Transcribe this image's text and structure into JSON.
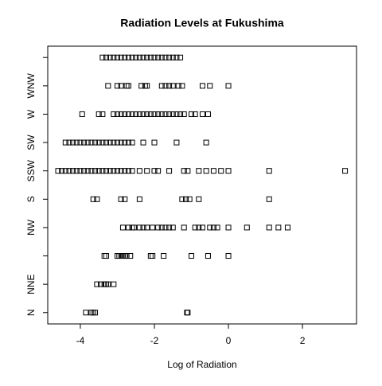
{
  "chart_data": {
    "type": "strip",
    "title": "Radiation Levels at Fukushima",
    "xlabel": "Log of Radiation",
    "categories": [
      "N",
      "NNE",
      null,
      "NW",
      "S",
      "SSW",
      "SW",
      "W",
      "WNW",
      null
    ],
    "values": [
      [
        -3.85,
        -3.7,
        -3.65,
        -3.6,
        -1.12,
        -1.1
      ],
      [
        -3.55,
        -3.45,
        -3.35,
        -3.3,
        -3.25,
        -3.1
      ],
      [
        -3.35,
        -3.3,
        -3.0,
        -2.95,
        -2.9,
        -2.85,
        -2.8,
        -2.75,
        -2.65,
        -2.1,
        -2.05,
        -1.75,
        -1.0,
        -0.55,
        0
      ],
      [
        -2.85,
        -2.7,
        -2.6,
        -2.55,
        -2.4,
        -2.3,
        -2.2,
        -2.05,
        -1.9,
        -1.8,
        -1.7,
        -1.6,
        -1.5,
        -1.2,
        -0.9,
        -0.8,
        -0.7,
        -0.5,
        -0.4,
        -0.3,
        0,
        0.5,
        1.1,
        1.35,
        1.6
      ],
      [
        -3.65,
        -3.55,
        -2.9,
        -2.8,
        -2.4,
        -1.25,
        -1.15,
        -1.05,
        -0.8,
        1.1
      ],
      [
        -4.6,
        -4.5,
        -4.4,
        -4.3,
        -4.2,
        -4.1,
        -4.0,
        -3.9,
        -3.8,
        -3.7,
        -3.6,
        -3.5,
        -3.4,
        -3.3,
        -3.2,
        -3.1,
        -3.0,
        -2.9,
        -2.8,
        -2.7,
        -2.6,
        -2.4,
        -2.2,
        -2.0,
        -1.9,
        -1.6,
        -1.2,
        -1.1,
        -0.8,
        -0.6,
        -0.4,
        -0.2,
        0,
        1.1,
        3.15
      ],
      [
        -4.4,
        -4.3,
        -4.2,
        -4.1,
        -4.0,
        -3.9,
        -3.8,
        -3.7,
        -3.6,
        -3.5,
        -3.4,
        -3.3,
        -3.2,
        -3.1,
        -3.0,
        -2.9,
        -2.8,
        -2.7,
        -2.6,
        -2.3,
        -2.0,
        -1.4,
        -0.6
      ],
      [
        -3.95,
        -3.5,
        -3.4,
        -3.1,
        -3.0,
        -2.9,
        -2.8,
        -2.7,
        -2.6,
        -2.5,
        -2.4,
        -2.3,
        -2.2,
        -2.1,
        -2.0,
        -1.9,
        -1.8,
        -1.7,
        -1.6,
        -1.5,
        -1.4,
        -1.3,
        -1.2,
        -1.0,
        -0.9,
        -0.7,
        -0.55
      ],
      [
        -3.25,
        -3.0,
        -2.9,
        -2.75,
        -2.7,
        -2.35,
        -2.25,
        -2.2,
        -1.8,
        -1.7,
        -1.6,
        -1.5,
        -1.35,
        -1.25,
        -0.7,
        -0.5,
        0
      ],
      [
        -3.4,
        -3.3,
        -3.2,
        -3.1,
        -3.0,
        -2.9,
        -2.8,
        -2.7,
        -2.6,
        -2.5,
        -2.4,
        -2.3,
        -2.2,
        -2.1,
        -2.0,
        -1.9,
        -1.8,
        -1.7,
        -1.6,
        -1.5,
        -1.4,
        -1.3
      ]
    ],
    "color": "#000000",
    "xlim": [
      -4.88,
      3.46
    ],
    "xticks": [
      -4,
      -2,
      0,
      2
    ],
    "ylim": [
      0.6,
      10.4
    ]
  }
}
